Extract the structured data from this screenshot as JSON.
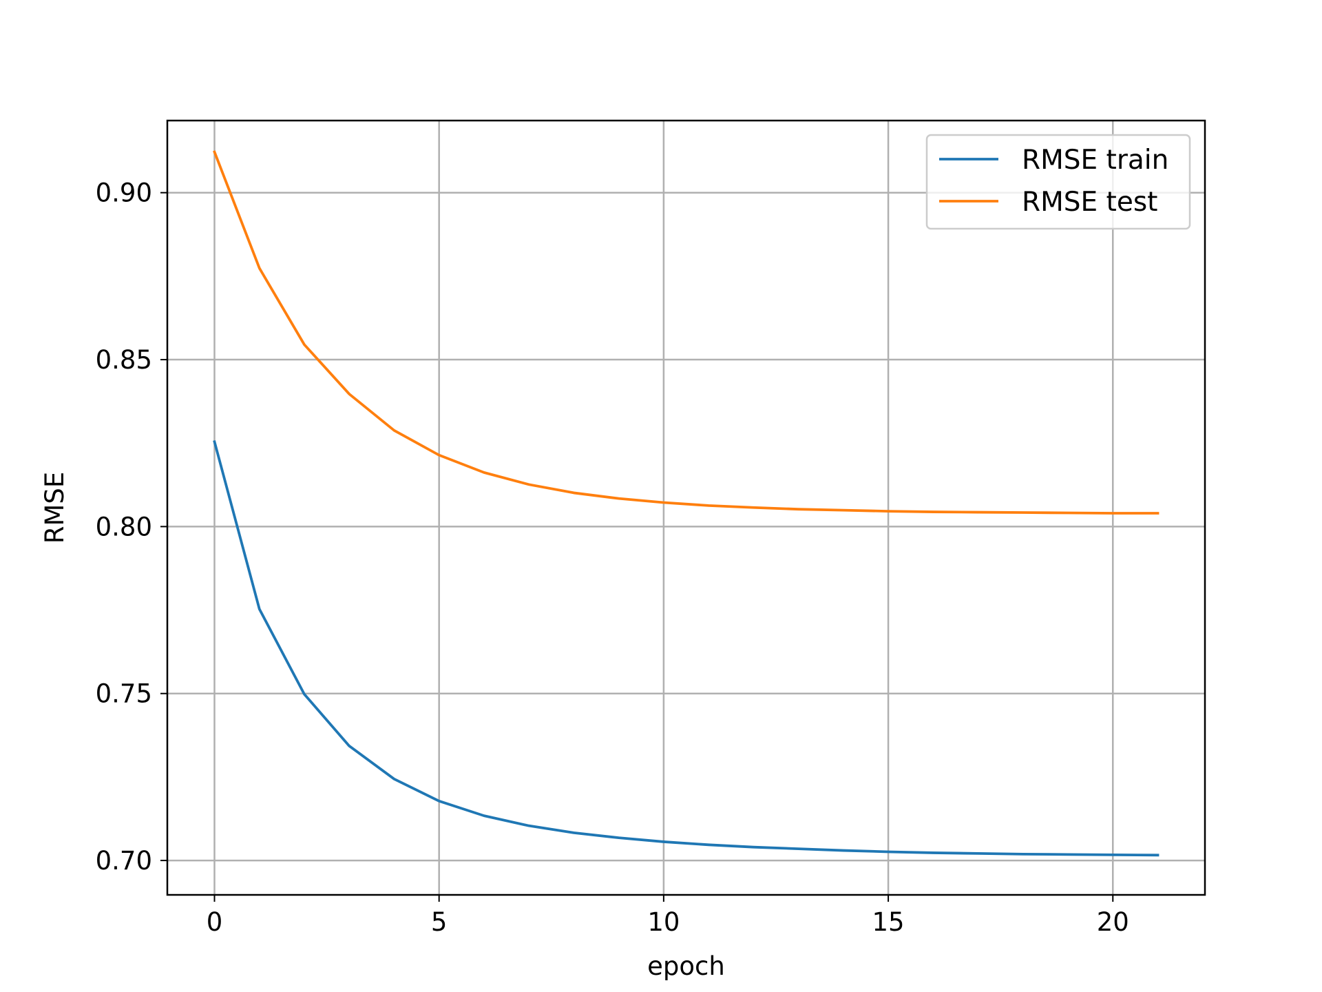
{
  "chart_data": {
    "type": "line",
    "title": "",
    "xlabel": "epoch",
    "ylabel": "RMSE",
    "xlim": [
      -1.05,
      22.05
    ],
    "ylim": [
      0.6897,
      0.9216
    ],
    "xticks": [
      0,
      5,
      10,
      15,
      20
    ],
    "xtick_labels": [
      "0",
      "5",
      "10",
      "15",
      "20"
    ],
    "yticks": [
      0.7,
      0.75,
      0.8,
      0.85,
      0.9
    ],
    "ytick_labels": [
      "0.70",
      "0.75",
      "0.80",
      "0.85",
      "0.90"
    ],
    "grid": true,
    "legend_position": "top-right",
    "x": [
      0,
      1,
      2,
      3,
      4,
      5,
      6,
      7,
      8,
      9,
      10,
      11,
      12,
      13,
      14,
      15,
      16,
      17,
      18,
      19,
      20,
      21
    ],
    "series": [
      {
        "name": "RMSE train",
        "color": "#1f77b4",
        "values": [
          0.8254,
          0.7753,
          0.7498,
          0.7343,
          0.7244,
          0.7178,
          0.7134,
          0.7104,
          0.7083,
          0.7068,
          0.7056,
          0.7047,
          0.704,
          0.7035,
          0.703,
          0.7026,
          0.7023,
          0.7021,
          0.7019,
          0.7018,
          0.7017,
          0.7016
        ]
      },
      {
        "name": "RMSE test",
        "color": "#ff7f0e",
        "values": [
          0.9122,
          0.8774,
          0.8545,
          0.8397,
          0.8288,
          0.8214,
          0.8162,
          0.8126,
          0.8101,
          0.8084,
          0.8072,
          0.8063,
          0.8057,
          0.8052,
          0.8049,
          0.8046,
          0.8044,
          0.8043,
          0.8042,
          0.8041,
          0.804,
          0.804
        ]
      }
    ]
  }
}
